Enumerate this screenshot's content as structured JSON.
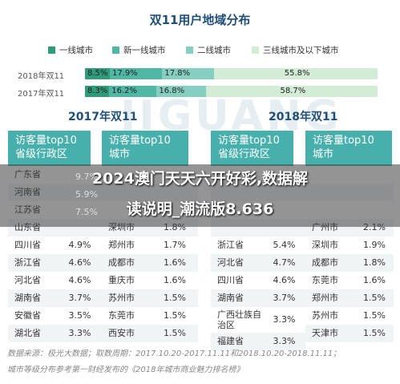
{
  "chart_title": "双11用户地域分布",
  "legend": [
    {
      "name": "一线城市",
      "color": "#2f9b78"
    },
    {
      "name": "新一线城市",
      "color": "#4fb7a4"
    },
    {
      "name": "二线城市",
      "color": "#86cfc0"
    },
    {
      "name": "三线城市及以下城市",
      "color": "#d3ecd6"
    }
  ],
  "chart_data": {
    "type": "bar",
    "stacked": true,
    "orientation": "horizontal",
    "categories": [
      "2018年双11",
      "2017年双11"
    ],
    "series": [
      {
        "name": "一线城市",
        "values": [
          8.5,
          8.3
        ]
      },
      {
        "name": "新一线城市",
        "values": [
          17.9,
          16.2
        ]
      },
      {
        "name": "二线城市",
        "values": [
          17.8,
          16.8
        ]
      },
      {
        "name": "三线城市及以下城市",
        "values": [
          55.8,
          58.7
        ]
      }
    ],
    "labels": [
      [
        "8.5%",
        "17.9%",
        "17.8%",
        "55.8%"
      ],
      [
        "8.3%",
        "16.2%",
        "16.8%",
        "58.7%"
      ]
    ]
  },
  "watermark": "JIGUANG",
  "year2017": "2017年双11",
  "year2018": "2018年双11",
  "headers": {
    "prov": [
      "访客量top10",
      "省级行政区"
    ],
    "city": [
      "访客量top10",
      "城市"
    ]
  },
  "tables": {
    "y2017_prov": [
      [
        "广东省",
        ""
      ],
      [
        "河南省",
        ""
      ],
      [
        "江苏省",
        ""
      ],
      [
        "山东省",
        ""
      ],
      [
        "四川省",
        "4.9%"
      ],
      [
        "浙江省",
        "4.6%"
      ],
      [
        "河北省",
        "4.6%"
      ],
      [
        "湖南省",
        "3.7%"
      ],
      [
        "安徽省",
        "3.5%"
      ],
      [
        "湖北省",
        "3.3%"
      ]
    ],
    "y2017_city": [
      [
        "",
        ""
      ],
      [
        "",
        ""
      ],
      [
        "",
        ""
      ],
      [
        "深圳市",
        "1.8%"
      ],
      [
        "郑州市",
        "1.7%"
      ],
      [
        "成都市",
        "1.6%"
      ],
      [
        "重庆市",
        "1.6%"
      ],
      [
        "苏州市",
        "1.5%"
      ],
      [
        "东莞市",
        "1.5%"
      ],
      [
        "西安市",
        "1.5%"
      ]
    ],
    "y2018_prov": [
      [
        "",
        ""
      ],
      [
        "",
        ""
      ],
      [
        "",
        ""
      ],
      [
        "",
        ""
      ],
      [
        "浙江省",
        "5.4%"
      ],
      [
        "河北省",
        "4.7%"
      ],
      [
        "四川省",
        "4.6%"
      ],
      [
        "湖南省",
        "3.7%"
      ],
      [
        "广西壮族自治区",
        "3.3%"
      ],
      [
        "福建省",
        "3.3%"
      ]
    ],
    "y2018_city": [
      [
        "",
        ""
      ],
      [
        "",
        ""
      ],
      [
        "",
        ""
      ],
      [
        "广州市",
        "2.1%"
      ],
      [
        "深圳市",
        "1.9%"
      ],
      [
        "成都市",
        "1.8%"
      ],
      [
        "东莞市",
        "1.6%"
      ],
      [
        "郑州市",
        "1.5%"
      ],
      [
        "苏州市",
        "1.5%"
      ],
      [
        "天津市",
        "1.5%"
      ]
    ]
  },
  "partial_values": [
    "9.7%",
    "7.5%",
    "5.9%"
  ],
  "overlay": {
    "line1": "2024澳门天天六开好彩,数据解",
    "line2": "读说明_潮流版8.636"
  },
  "footer": {
    "line1": "数据来源：极光大数据；取数周期：2017.10.20-2017.11.11和2018.10.20-2018.11.11；",
    "line2": "城市等级分布参考第一财经发布的《2018年城市商业魅力排名榜》"
  }
}
